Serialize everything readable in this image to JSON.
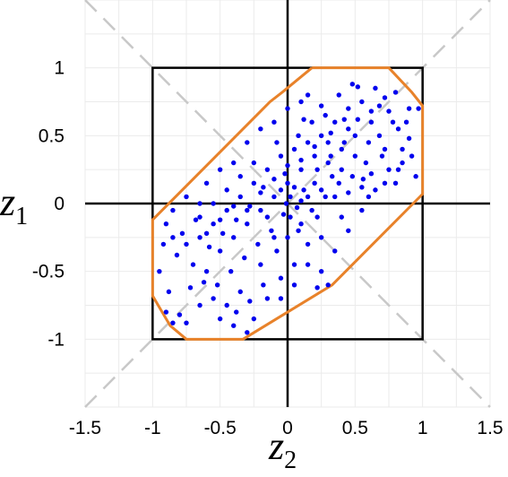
{
  "chart_data": {
    "type": "scatter",
    "xlabel": "z",
    "xlabel_sub": "2",
    "ylabel": "z",
    "ylabel_sub": "1",
    "xlim": [
      -1.5,
      1.5
    ],
    "ylim": [
      -1.5,
      1.5
    ],
    "x_ticks": [
      -1.5,
      -1,
      -0.5,
      0,
      0.5,
      1,
      1.5
    ],
    "x_tick_labels": [
      "-1.5",
      "-1",
      "-0.5",
      "0",
      "0.5",
      "1",
      "1.5"
    ],
    "y_ticks": [
      -1,
      -0.5,
      0,
      0.5,
      1
    ],
    "y_tick_labels": [
      "-1",
      "-0.5",
      "0",
      "0.5",
      "1"
    ],
    "grid": true,
    "colors": {
      "points": "#0000ee",
      "polygon": "#e8822a",
      "square": "#000000",
      "diagonals": "#c8c8c8",
      "grid": "#ebebeb"
    },
    "unit_square": [
      [
        -1,
        -1
      ],
      [
        1,
        -1
      ],
      [
        1,
        1
      ],
      [
        -1,
        1
      ]
    ],
    "diagonals": [
      [
        [
          -1.5,
          -1.5
        ],
        [
          1.5,
          1.5
        ]
      ],
      [
        [
          -1.5,
          1.5
        ],
        [
          1.5,
          -1.5
        ]
      ]
    ],
    "polygon": [
      [
        0.18,
        1.0
      ],
      [
        0.75,
        1.0
      ],
      [
        0.92,
        0.82
      ],
      [
        1.0,
        0.72
      ],
      [
        1.0,
        0.07
      ],
      [
        0.93,
        0.0
      ],
      [
        0.33,
        -0.6
      ],
      [
        -0.33,
        -1.0
      ],
      [
        -0.75,
        -1.0
      ],
      [
        -0.87,
        -0.9
      ],
      [
        -1.0,
        -0.68
      ],
      [
        -1.0,
        -0.12
      ],
      [
        -0.13,
        0.75
      ],
      [
        -0.04,
        0.82
      ],
      [
        0.18,
        1.0
      ]
    ],
    "points": [
      [
        -0.01,
        0.0
      ],
      [
        0.1,
        0.02
      ],
      [
        0.05,
        0.12
      ],
      [
        0.22,
        -0.1
      ],
      [
        0.3,
        0.3
      ],
      [
        0.45,
        0.55
      ],
      [
        0.18,
        0.6
      ],
      [
        0.56,
        0.18
      ],
      [
        0.38,
        0.8
      ],
      [
        0.52,
        0.86
      ],
      [
        0.48,
        0.88
      ],
      [
        0.62,
        0.6
      ],
      [
        0.68,
        0.72
      ],
      [
        0.72,
        0.4
      ],
      [
        0.82,
        0.55
      ],
      [
        0.9,
        0.7
      ],
      [
        0.97,
        0.7
      ],
      [
        0.8,
        0.82
      ],
      [
        0.9,
        0.48
      ],
      [
        0.95,
        0.2
      ],
      [
        0.85,
        0.3
      ],
      [
        0.75,
        0.25
      ],
      [
        0.65,
        0.1
      ],
      [
        0.55,
        -0.05
      ],
      [
        0.45,
        -0.2
      ],
      [
        0.35,
        -0.35
      ],
      [
        0.25,
        -0.5
      ],
      [
        0.3,
        -0.6
      ],
      [
        0.15,
        -0.3
      ],
      [
        0.05,
        -0.45
      ],
      [
        -0.05,
        -0.55
      ],
      [
        -0.15,
        -0.7
      ],
      [
        -0.25,
        -0.85
      ],
      [
        -0.3,
        -0.95
      ],
      [
        -0.4,
        -0.9
      ],
      [
        -0.5,
        -0.85
      ],
      [
        -0.55,
        -0.7
      ],
      [
        -0.65,
        -0.75
      ],
      [
        -0.75,
        -0.88
      ],
      [
        -0.8,
        -0.82
      ],
      [
        -0.85,
        -0.88
      ],
      [
        -0.9,
        -0.8
      ],
      [
        -0.88,
        -0.65
      ],
      [
        -0.95,
        -0.5
      ],
      [
        -0.92,
        -0.3
      ],
      [
        -0.9,
        -0.15
      ],
      [
        -0.85,
        -0.05
      ],
      [
        -0.75,
        0.05
      ],
      [
        -0.65,
        0.0
      ],
      [
        -0.6,
        0.15
      ],
      [
        -0.5,
        0.25
      ],
      [
        -0.4,
        0.3
      ],
      [
        -0.3,
        0.45
      ],
      [
        -0.2,
        0.55
      ],
      [
        -0.1,
        0.6
      ],
      [
        0.0,
        0.7
      ],
      [
        0.1,
        0.75
      ],
      [
        0.15,
        0.8
      ],
      [
        0.25,
        0.72
      ],
      [
        -0.05,
        0.35
      ],
      [
        -0.15,
        0.25
      ],
      [
        -0.25,
        0.15
      ],
      [
        -0.35,
        0.05
      ],
      [
        -0.45,
        -0.05
      ],
      [
        -0.55,
        -0.15
      ],
      [
        -0.65,
        -0.25
      ],
      [
        -0.7,
        -0.45
      ],
      [
        -0.6,
        -0.5
      ],
      [
        -0.5,
        -0.35
      ],
      [
        -0.4,
        -0.25
      ],
      [
        -0.3,
        -0.15
      ],
      [
        -0.2,
        -0.05
      ],
      [
        -0.1,
        0.05
      ],
      [
        0.0,
        0.15
      ],
      [
        0.1,
        0.25
      ],
      [
        0.2,
        0.35
      ],
      [
        0.3,
        0.45
      ],
      [
        0.4,
        0.4
      ],
      [
        0.5,
        0.35
      ],
      [
        0.6,
        0.45
      ],
      [
        0.35,
        0.6
      ],
      [
        0.25,
        0.5
      ],
      [
        0.15,
        0.45
      ],
      [
        0.05,
        0.4
      ],
      [
        -0.05,
        0.1
      ],
      [
        0.02,
        -0.1
      ],
      [
        -0.12,
        -0.2
      ],
      [
        -0.22,
        -0.3
      ],
      [
        -0.32,
        -0.4
      ],
      [
        -0.42,
        -0.5
      ],
      [
        -0.52,
        -0.6
      ],
      [
        -0.35,
        -0.65
      ],
      [
        -0.2,
        -0.45
      ],
      [
        -0.08,
        -0.35
      ],
      [
        0.08,
        -0.2
      ],
      [
        0.18,
        -0.05
      ],
      [
        0.28,
        0.05
      ],
      [
        0.38,
        0.15
      ],
      [
        0.48,
        0.2
      ],
      [
        0.58,
        0.3
      ],
      [
        0.68,
        0.5
      ],
      [
        0.78,
        0.6
      ],
      [
        0.45,
        0.7
      ],
      [
        0.55,
        0.75
      ],
      [
        0.65,
        0.85
      ],
      [
        0.33,
        0.2
      ],
      [
        0.12,
        0.1
      ],
      [
        -0.02,
        0.22
      ],
      [
        -0.18,
        0.12
      ],
      [
        -0.28,
        -0.02
      ],
      [
        -0.38,
        -0.12
      ],
      [
        -0.48,
        -0.22
      ],
      [
        -0.58,
        -0.32
      ],
      [
        -0.68,
        -0.12
      ],
      [
        -0.78,
        -0.22
      ],
      [
        -0.82,
        -0.38
      ],
      [
        -0.72,
        -0.62
      ],
      [
        -0.62,
        -0.58
      ],
      [
        -0.45,
        -0.75
      ],
      [
        -0.1,
        -0.25
      ],
      [
        0.2,
        0.15
      ],
      [
        0.4,
        0.25
      ],
      [
        0.5,
        0.5
      ],
      [
        0.7,
        0.35
      ],
      [
        0.85,
        0.4
      ],
      [
        0.92,
        0.35
      ],
      [
        0.8,
        0.15
      ],
      [
        0.6,
        0.05
      ],
      [
        0.4,
        -0.1
      ],
      [
        0.25,
        -0.25
      ],
      [
        0.1,
        -0.15
      ],
      [
        0.0,
        -0.25
      ],
      [
        -0.15,
        -0.1
      ],
      [
        -0.25,
        0.3
      ],
      [
        -0.35,
        0.2
      ],
      [
        -0.45,
        0.1
      ],
      [
        -0.55,
        0.0
      ],
      [
        -0.65,
        -0.1
      ],
      [
        -0.75,
        -0.3
      ],
      [
        -0.85,
        -0.25
      ],
      [
        0.22,
        0.25
      ],
      [
        0.32,
        0.35
      ],
      [
        0.42,
        0.45
      ],
      [
        0.52,
        0.62
      ],
      [
        0.62,
        0.68
      ],
      [
        0.72,
        0.78
      ],
      [
        0.08,
        0.5
      ],
      [
        -0.08,
        0.45
      ],
      [
        0.12,
        0.62
      ],
      [
        0.28,
        0.65
      ],
      [
        0.15,
        -0.45
      ],
      [
        0.05,
        -0.6
      ],
      [
        -0.05,
        -0.7
      ],
      [
        0.22,
        -0.62
      ],
      [
        -0.18,
        -0.6
      ],
      [
        -0.28,
        -0.72
      ],
      [
        -0.38,
        -0.8
      ],
      [
        0.02,
        0.05
      ],
      [
        0.07,
        -0.03
      ],
      [
        -0.03,
        -0.08
      ],
      [
        0.15,
        0.05
      ],
      [
        0.25,
        0.1
      ],
      [
        0.35,
        0.05
      ],
      [
        0.45,
        0.08
      ],
      [
        0.55,
        0.12
      ],
      [
        0.32,
        0.52
      ],
      [
        0.42,
        0.62
      ],
      [
        0.2,
        0.42
      ],
      [
        0.1,
        0.32
      ],
      [
        0.0,
        0.28
      ],
      [
        -0.1,
        0.18
      ],
      [
        -0.2,
        0.08
      ],
      [
        -0.3,
        -0.05
      ],
      [
        -0.4,
        -0.02
      ],
      [
        -0.5,
        -0.12
      ],
      [
        -0.6,
        -0.22
      ],
      [
        0.62,
        0.22
      ],
      [
        0.72,
        0.15
      ],
      [
        0.82,
        0.25
      ],
      [
        0.88,
        0.6
      ],
      [
        0.75,
        0.68
      ]
    ]
  }
}
